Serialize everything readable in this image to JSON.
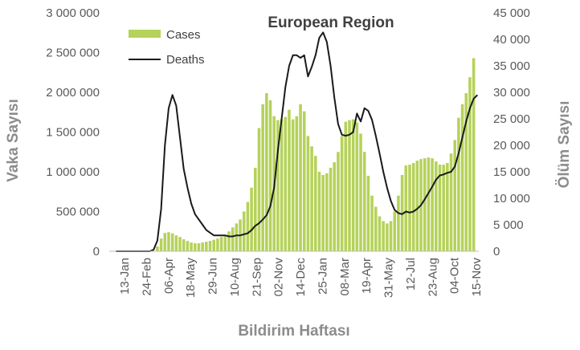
{
  "chart_data": {
    "type": "bar+line",
    "title": "European Region",
    "xlabel": "Bildirim Haftası",
    "ylabel_left": "Vaka Sayısı",
    "ylabel_right": "Ölüm Sayısı",
    "ylim_left": [
      0,
      3000000
    ],
    "ylim_right": [
      0,
      45000
    ],
    "yticks_left": [
      "0",
      "500 000",
      "1 000 000",
      "1 500 000",
      "2 000 000",
      "2 500 000",
      "3 000 000"
    ],
    "yticks_right": [
      "0",
      "5 000",
      "10 000",
      "15 000",
      "20 000",
      "25 000",
      "30 000",
      "35 000",
      "40 000",
      "45 000"
    ],
    "xtick_labels": [
      "13-Jan",
      "24-Feb",
      "06-Apr",
      "18-May",
      "29-Jun",
      "10-Aug",
      "21-Sep",
      "02-Nov",
      "14-Dec",
      "25-Jan",
      "08-Mar",
      "19-Apr",
      "31-May",
      "12-Jul",
      "23-Aug",
      "04-Oct",
      "15-Nov"
    ],
    "legend": [
      {
        "label": "Cases",
        "color": "#b5d25a"
      },
      {
        "label": "Deaths",
        "color": "#1a1a1a"
      }
    ],
    "series": [
      {
        "name": "Cases",
        "type": "bar",
        "axis": "left",
        "values": [
          0,
          0,
          0,
          0,
          0,
          0,
          0,
          0,
          0,
          0,
          5000,
          60000,
          160000,
          230000,
          240000,
          225000,
          200000,
          180000,
          150000,
          130000,
          110000,
          100000,
          100000,
          110000,
          120000,
          130000,
          145000,
          160000,
          180000,
          200000,
          250000,
          300000,
          350000,
          400000,
          500000,
          620000,
          800000,
          1050000,
          1550000,
          1850000,
          1990000,
          1900000,
          1700000,
          1650000,
          1660000,
          1690000,
          1780000,
          1660000,
          1700000,
          1850000,
          1760000,
          1450000,
          1320000,
          1200000,
          1000000,
          960000,
          980000,
          1050000,
          1120000,
          1250000,
          1450000,
          1630000,
          1650000,
          1660000,
          1620000,
          1480000,
          1250000,
          950000,
          700000,
          560000,
          440000,
          380000,
          350000,
          380000,
          500000,
          700000,
          960000,
          1080000,
          1090000,
          1110000,
          1140000,
          1160000,
          1170000,
          1180000,
          1170000,
          1130000,
          1090000,
          1090000,
          1110000,
          1230000,
          1400000,
          1680000,
          1850000,
          1990000,
          2190000,
          2430000
        ]
      },
      {
        "name": "Deaths",
        "type": "line",
        "axis": "right",
        "values": [
          0,
          0,
          0,
          0,
          0,
          0,
          0,
          0,
          0,
          0,
          300,
          2000,
          8000,
          20000,
          27000,
          29500,
          27500,
          21500,
          15500,
          12000,
          9000,
          7000,
          6000,
          5000,
          4000,
          3500,
          3000,
          3000,
          3000,
          3000,
          2800,
          2800,
          3000,
          3000,
          3200,
          3400,
          4000,
          4800,
          5300,
          6000,
          6800,
          8500,
          12000,
          19000,
          25000,
          31000,
          35000,
          37000,
          37000,
          36500,
          37000,
          33000,
          34800,
          37000,
          40300,
          41300,
          39500,
          35000,
          29000,
          24000,
          22000,
          21800,
          22000,
          22500,
          26000,
          24500,
          27000,
          26500,
          24800,
          21800,
          18500,
          15000,
          12000,
          9500,
          7800,
          7200,
          7000,
          7500,
          7300,
          7500,
          8000,
          8700,
          9800,
          11000,
          12200,
          13500,
          14300,
          14500,
          14800,
          15000,
          16000,
          18500,
          21500,
          24500,
          27000,
          28800,
          29500
        ]
      }
    ]
  }
}
